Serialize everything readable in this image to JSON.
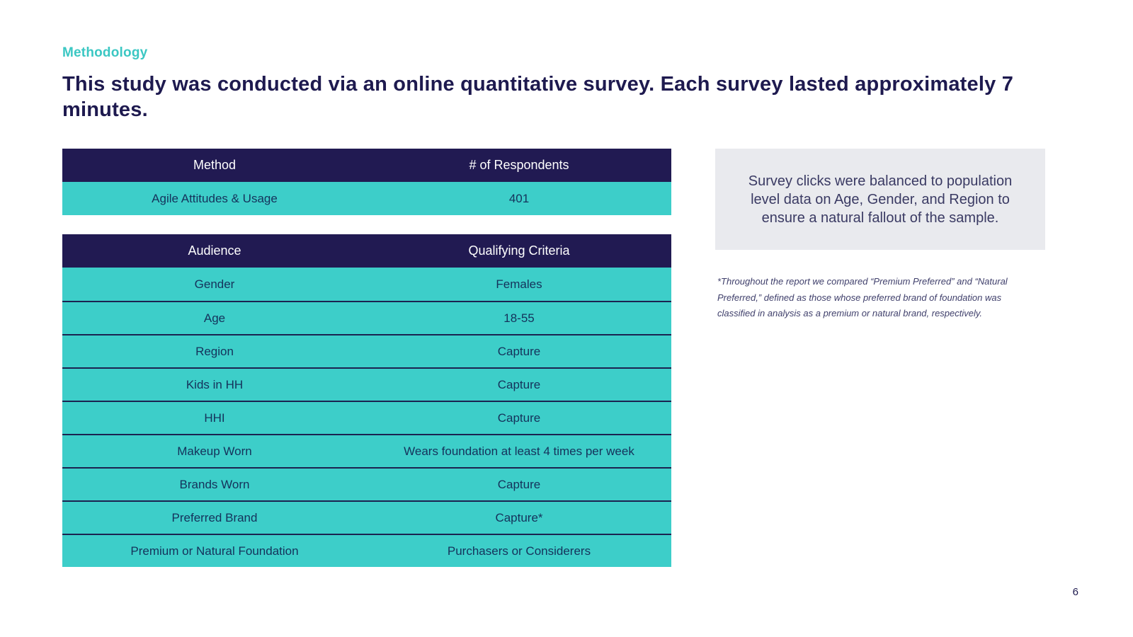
{
  "page": {
    "eyebrow": "Methodology",
    "title": "This study was conducted via an online quantitative survey. Each survey lasted approximately 7 minutes.",
    "page_number": "6"
  },
  "colors": {
    "header_navy": "#211A52",
    "row_teal": "#3DCEC9",
    "accent_teal": "#3BC7C3",
    "cell_text": "#15325B",
    "callout_background": "#E9EAEE"
  },
  "method_table": {
    "headers": [
      "Method",
      "# of Respondents"
    ],
    "rows": [
      [
        "Agile Attitudes & Usage",
        "401"
      ]
    ]
  },
  "audience_table": {
    "headers": [
      "Audience",
      "Qualifying Criteria"
    ],
    "rows": [
      [
        "Gender",
        "Females"
      ],
      [
        "Age",
        "18-55"
      ],
      [
        "Region",
        "Capture"
      ],
      [
        "Kids in HH",
        "Capture"
      ],
      [
        "HHI",
        "Capture"
      ],
      [
        "Makeup Worn",
        "Wears foundation at least 4 times per week"
      ],
      [
        "Brands Worn",
        "Capture"
      ],
      [
        "Preferred Brand",
        "Capture*"
      ],
      [
        "Premium or Natural Foundation",
        "Purchasers or Considerers"
      ]
    ]
  },
  "callout": {
    "text": "Survey clicks were balanced to population level data on Age, Gender, and Region to ensure a natural fallout of the sample."
  },
  "footnote": {
    "text": "*Throughout the report we compared “Premium Preferred” and “Natural Preferred,” defined as those whose preferred brand of foundation was classified in analysis as a premium or natural brand, respectively."
  }
}
